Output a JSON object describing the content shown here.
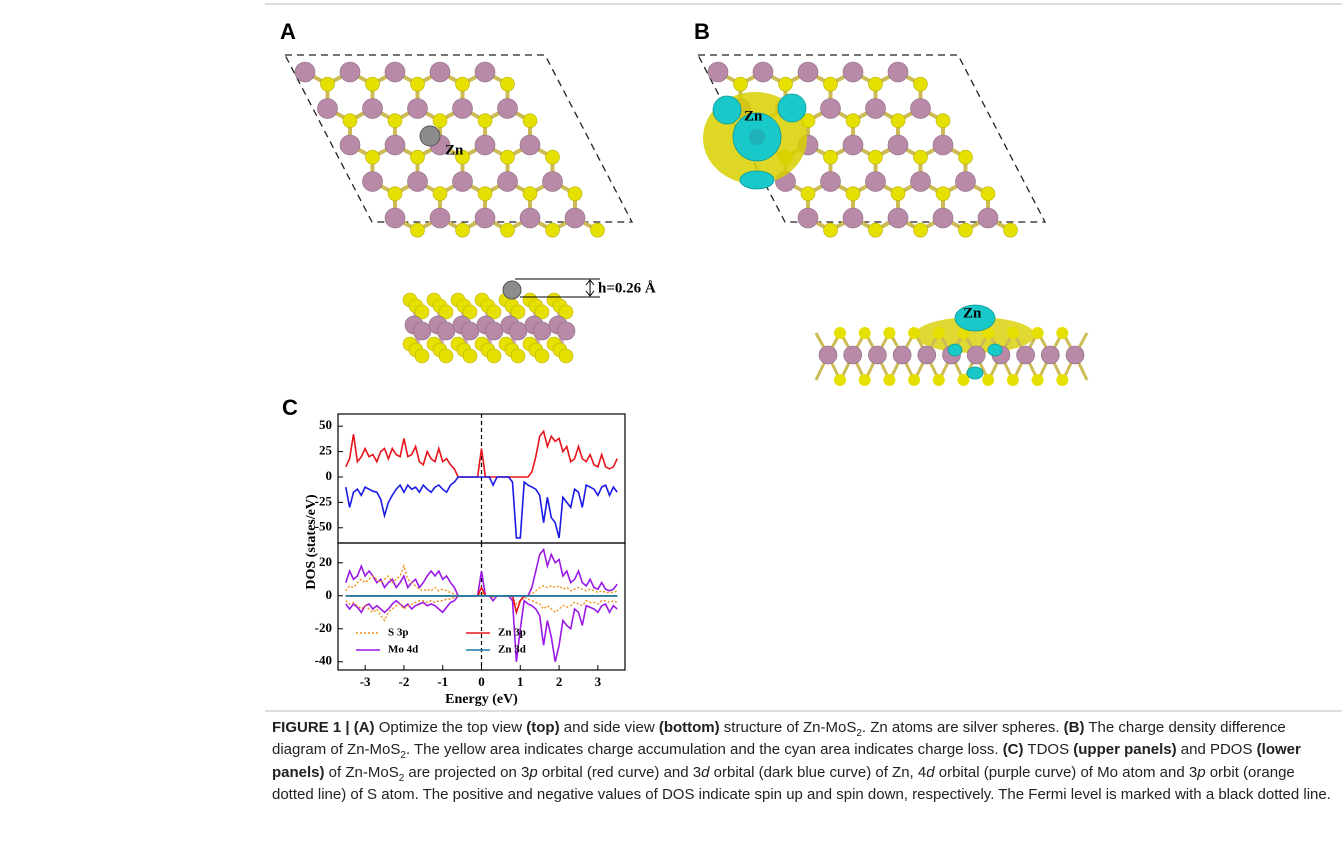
{
  "figure": {
    "panel_a": {
      "label": "A",
      "atom_label": "Zn",
      "height_label": "h=0.26 Å"
    },
    "panel_b": {
      "label": "B",
      "atom_label_top": "Zn",
      "atom_label_side": "Zn"
    },
    "panel_c": {
      "label": "C"
    }
  },
  "chart_data": [
    {
      "type": "line",
      "ylabel": "DOS (states/eV)",
      "vline": 0,
      "x": [
        -3.5,
        -3.4,
        -3.3,
        -3.2,
        -3.1,
        -3,
        -2.9,
        -2.8,
        -2.7,
        -2.6,
        -2.5,
        -2.4,
        -2.3,
        -2.2,
        -2.1,
        -2,
        -1.9,
        -1.8,
        -1.7,
        -1.6,
        -1.5,
        -1.4,
        -1.3,
        -1.2,
        -1.1,
        -1,
        -0.9,
        -0.8,
        -0.7,
        -0.6,
        -0.5,
        -0.4,
        -0.3,
        -0.2,
        -0.1,
        0,
        0.1,
        0.2,
        0.3,
        0.4,
        0.5,
        0.6,
        0.7,
        0.8,
        0.9,
        1,
        1.1,
        1.2,
        1.3,
        1.4,
        1.5,
        1.6,
        1.7,
        1.8,
        1.9,
        2,
        2.1,
        2.2,
        2.3,
        2.4,
        2.5,
        2.6,
        2.7,
        2.8,
        2.9,
        3,
        3.1,
        3.2,
        3.3,
        3.4,
        3.5
      ],
      "xlim": [
        -3.7,
        3.7
      ],
      "ylim": [
        -65,
        62
      ],
      "yticks": [
        50,
        25,
        0,
        -25,
        -50
      ],
      "series": [
        {
          "color": "#e8141b",
          "color_down": "#1a1ae6",
          "values": [
            10,
            18,
            42,
            15,
            20,
            28,
            20,
            22,
            15,
            25,
            28,
            18,
            28,
            22,
            20,
            38,
            20,
            22,
            30,
            15,
            12,
            25,
            18,
            15,
            28,
            15,
            18,
            12,
            8,
            0,
            0,
            0,
            0,
            0,
            0,
            28,
            0,
            0,
            0,
            0,
            0,
            0,
            0,
            0,
            0,
            0,
            0,
            0,
            5,
            20,
            40,
            45,
            30,
            40,
            35,
            38,
            25,
            30,
            15,
            18,
            30,
            18,
            15,
            22,
            12,
            10,
            22,
            10,
            8,
            10,
            18
          ],
          "values_down": [
            -10,
            -30,
            -15,
            -12,
            -18,
            -10,
            -12,
            -14,
            -15,
            -22,
            -38,
            -25,
            -18,
            -12,
            -8,
            -15,
            -8,
            -12,
            -10,
            -15,
            -8,
            -12,
            -15,
            -10,
            -8,
            -12,
            -15,
            -8,
            -5,
            0,
            0,
            0,
            0,
            0,
            0,
            0,
            0,
            0,
            -8,
            0,
            0,
            0,
            0,
            -5,
            -60,
            -60,
            -5,
            -8,
            -10,
            -12,
            -18,
            -45,
            -20,
            -40,
            -45,
            -60,
            -20,
            -25,
            -30,
            -12,
            -15,
            -30,
            -8,
            -10,
            -12,
            -18,
            -10,
            -8,
            -18,
            -10,
            -15
          ]
        }
      ]
    },
    {
      "type": "line",
      "xlabel": "Energy (eV)",
      "vline": 0,
      "x": [
        -3.5,
        -3.4,
        -3.3,
        -3.2,
        -3.1,
        -3,
        -2.9,
        -2.8,
        -2.7,
        -2.6,
        -2.5,
        -2.4,
        -2.3,
        -2.2,
        -2.1,
        -2,
        -1.9,
        -1.8,
        -1.7,
        -1.6,
        -1.5,
        -1.4,
        -1.3,
        -1.2,
        -1.1,
        -1,
        -0.9,
        -0.8,
        -0.7,
        -0.6,
        -0.5,
        -0.4,
        -0.3,
        -0.2,
        -0.1,
        0,
        0.1,
        0.2,
        0.3,
        0.4,
        0.5,
        0.6,
        0.7,
        0.8,
        0.9,
        1,
        1.1,
        1.2,
        1.3,
        1.4,
        1.5,
        1.6,
        1.7,
        1.8,
        1.9,
        2,
        2.1,
        2.2,
        2.3,
        2.4,
        2.5,
        2.6,
        2.7,
        2.8,
        2.9,
        3,
        3.1,
        3.2,
        3.3,
        3.4,
        3.5
      ],
      "xlim": [
        -3.7,
        3.7
      ],
      "xticks": [
        -3,
        -2,
        -1,
        0,
        1,
        2,
        3
      ],
      "ylim": [
        -45,
        32
      ],
      "yticks": [
        20,
        0,
        -20,
        -40
      ],
      "series": [
        {
          "name": "S 3p",
          "color": "#f39019",
          "dash": true,
          "values": [
            3,
            6,
            5,
            8,
            10,
            8,
            10,
            12,
            10,
            8,
            10,
            12,
            8,
            10,
            12,
            18,
            10,
            8,
            6,
            4,
            3,
            4,
            3,
            5,
            3,
            4,
            3,
            2,
            1,
            0,
            0,
            0,
            0,
            0,
            0,
            2,
            0,
            0,
            0,
            0,
            0,
            0,
            0,
            0,
            0,
            0,
            0,
            0,
            1,
            3,
            5,
            6,
            5,
            6,
            5,
            6,
            4,
            5,
            3,
            4,
            5,
            4,
            3,
            4,
            3,
            2,
            3,
            2,
            2,
            2,
            3
          ],
          "values_down": [
            -3,
            -5,
            -4,
            -6,
            -8,
            -6,
            -8,
            -10,
            -8,
            -12,
            -15,
            -10,
            -8,
            -6,
            -5,
            -8,
            -6,
            -5,
            -4,
            -3,
            -3,
            -4,
            -3,
            -4,
            -3,
            -3,
            -2,
            -2,
            -1,
            0,
            0,
            0,
            0,
            0,
            0,
            0,
            0,
            0,
            -1,
            0,
            0,
            0,
            0,
            -1,
            -5,
            -3,
            -1,
            -2,
            -3,
            -4,
            -5,
            -8,
            -6,
            -8,
            -10,
            -8,
            -6,
            -7,
            -6,
            -4,
            -5,
            -6,
            -3,
            -4,
            -4,
            -5,
            -3,
            -3,
            -4,
            -3,
            -4
          ]
        },
        {
          "name": "Zn 3p",
          "color": "#e8141b",
          "dash": false,
          "values": [
            0,
            0,
            0,
            0,
            0,
            0,
            0,
            0,
            0,
            0,
            0,
            0,
            0,
            0,
            0,
            0,
            0,
            0,
            0,
            0,
            0,
            0,
            0,
            0,
            0,
            0,
            0,
            0,
            0,
            0,
            0,
            0,
            0,
            0,
            0,
            5,
            0,
            0,
            0,
            0,
            0,
            0,
            0,
            0,
            0,
            0,
            0,
            0,
            0,
            0,
            0,
            0,
            0,
            0,
            0,
            0,
            0,
            0,
            0,
            0,
            0,
            0,
            0,
            0,
            0,
            0,
            0,
            0,
            0,
            0,
            0
          ],
          "values_down": [
            0,
            0,
            0,
            0,
            0,
            0,
            0,
            0,
            0,
            0,
            0,
            0,
            0,
            0,
            0,
            0,
            0,
            0,
            0,
            0,
            0,
            0,
            0,
            0,
            0,
            0,
            0,
            0,
            0,
            0,
            0,
            0,
            0,
            0,
            0,
            0,
            0,
            0,
            0,
            0,
            0,
            0,
            0,
            0,
            -10,
            -3,
            0,
            0,
            0,
            0,
            0,
            0,
            0,
            0,
            0,
            0,
            0,
            0,
            0,
            0,
            0,
            0,
            0,
            0,
            0,
            0,
            0,
            0,
            0,
            0,
            0
          ]
        },
        {
          "name": "Mo 4d",
          "color": "#9b19e6",
          "dash": false,
          "values": [
            8,
            15,
            10,
            12,
            18,
            12,
            15,
            12,
            8,
            10,
            5,
            8,
            10,
            5,
            8,
            12,
            5,
            8,
            10,
            5,
            8,
            12,
            15,
            12,
            15,
            10,
            12,
            8,
            5,
            0,
            0,
            0,
            0,
            0,
            0,
            15,
            0,
            0,
            0,
            0,
            0,
            0,
            0,
            0,
            0,
            0,
            0,
            0,
            5,
            15,
            25,
            28,
            18,
            25,
            20,
            22,
            12,
            15,
            8,
            10,
            15,
            8,
            6,
            10,
            5,
            4,
            8,
            4,
            3,
            4,
            7
          ],
          "values_down": [
            -5,
            -8,
            -5,
            -7,
            -10,
            -6,
            -5,
            -8,
            -6,
            -8,
            -10,
            -8,
            -5,
            -3,
            -5,
            -7,
            -5,
            -8,
            -6,
            -5,
            -4,
            -6,
            -5,
            -6,
            -8,
            -10,
            -7,
            -4,
            -3,
            0,
            0,
            0,
            0,
            0,
            0,
            0,
            0,
            0,
            -3,
            0,
            0,
            0,
            0,
            -3,
            -40,
            -20,
            -3,
            -5,
            -6,
            -8,
            -12,
            -30,
            -15,
            -25,
            -40,
            -30,
            -15,
            -18,
            -20,
            -8,
            -10,
            -18,
            -6,
            -7,
            -8,
            -10,
            -6,
            -5,
            -10,
            -6,
            -8
          ]
        },
        {
          "name": "Zn 3d",
          "color": "#1a7aa8",
          "dash": false,
          "values": [
            0,
            0,
            0,
            0,
            0,
            0,
            0,
            0,
            0,
            0,
            0,
            0,
            0,
            0,
            0,
            0,
            0,
            0,
            0,
            0,
            0,
            0,
            0,
            0,
            0,
            0,
            0,
            0,
            0,
            0,
            0,
            0,
            0,
            0,
            0,
            0,
            0,
            0,
            0,
            0,
            0,
            0,
            0,
            0,
            0,
            0,
            0,
            0,
            0,
            0,
            0,
            0,
            0,
            0,
            0,
            0,
            0,
            0,
            0,
            0,
            0,
            0,
            0,
            0,
            0,
            0,
            0,
            0,
            0,
            0,
            0
          ],
          "values_down": [
            0,
            0,
            0,
            0,
            0,
            0,
            0,
            0,
            0,
            0,
            0,
            0,
            0,
            0,
            0,
            0,
            0,
            0,
            0,
            0,
            0,
            0,
            0,
            0,
            0,
            0,
            0,
            0,
            0,
            0,
            0,
            0,
            0,
            0,
            0,
            0,
            0,
            0,
            0,
            0,
            0,
            0,
            0,
            0,
            0,
            0,
            0,
            0,
            0,
            0,
            0,
            0,
            0,
            0,
            0,
            0,
            0,
            0,
            0,
            0,
            0,
            0,
            0,
            0,
            0,
            0,
            0,
            0,
            0,
            0,
            0
          ]
        }
      ]
    }
  ],
  "caption": [
    {
      "text": "FIGURE 1 | (A)",
      "style": "bold"
    },
    {
      "text": " Optimize the top view "
    },
    {
      "text": "(top)",
      "style": "bold"
    },
    {
      "text": " and side view "
    },
    {
      "text": "(bottom)",
      "style": "bold"
    },
    {
      "text": " structure of Zn-MoS"
    },
    {
      "text": "2",
      "style": "sub"
    },
    {
      "text": ". Zn atoms are silver spheres. "
    },
    {
      "text": "(B)",
      "style": "bold"
    },
    {
      "text": " The charge density difference diagram of Zn-MoS"
    },
    {
      "text": "2",
      "style": "sub"
    },
    {
      "text": ". The yellow area indicates charge accumulation and the cyan area indicates charge loss. "
    },
    {
      "text": "(C)",
      "style": "bold"
    },
    {
      "text": " TDOS "
    },
    {
      "text": "(upper panels)",
      "style": "bold"
    },
    {
      "text": " and PDOS "
    },
    {
      "text": "(lower panels)",
      "style": "bold"
    },
    {
      "text": " of Zn-MoS"
    },
    {
      "text": "2",
      "style": "sub"
    },
    {
      "text": " are projected on 3"
    },
    {
      "text": "p",
      "style": "italic"
    },
    {
      "text": " orbital (red curve) and 3"
    },
    {
      "text": "d",
      "style": "italic"
    },
    {
      "text": " orbital (dark blue curve) of Zn, 4"
    },
    {
      "text": "d",
      "style": "italic"
    },
    {
      "text": " orbital (purple curve) of Mo atom and 3"
    },
    {
      "text": "p",
      "style": "italic"
    },
    {
      "text": " orbit (orange dotted line) of S atom. The positive and negative values of DOS indicate spin up and spin down, respectively. The Fermi level is marked with a black dotted line."
    }
  ]
}
